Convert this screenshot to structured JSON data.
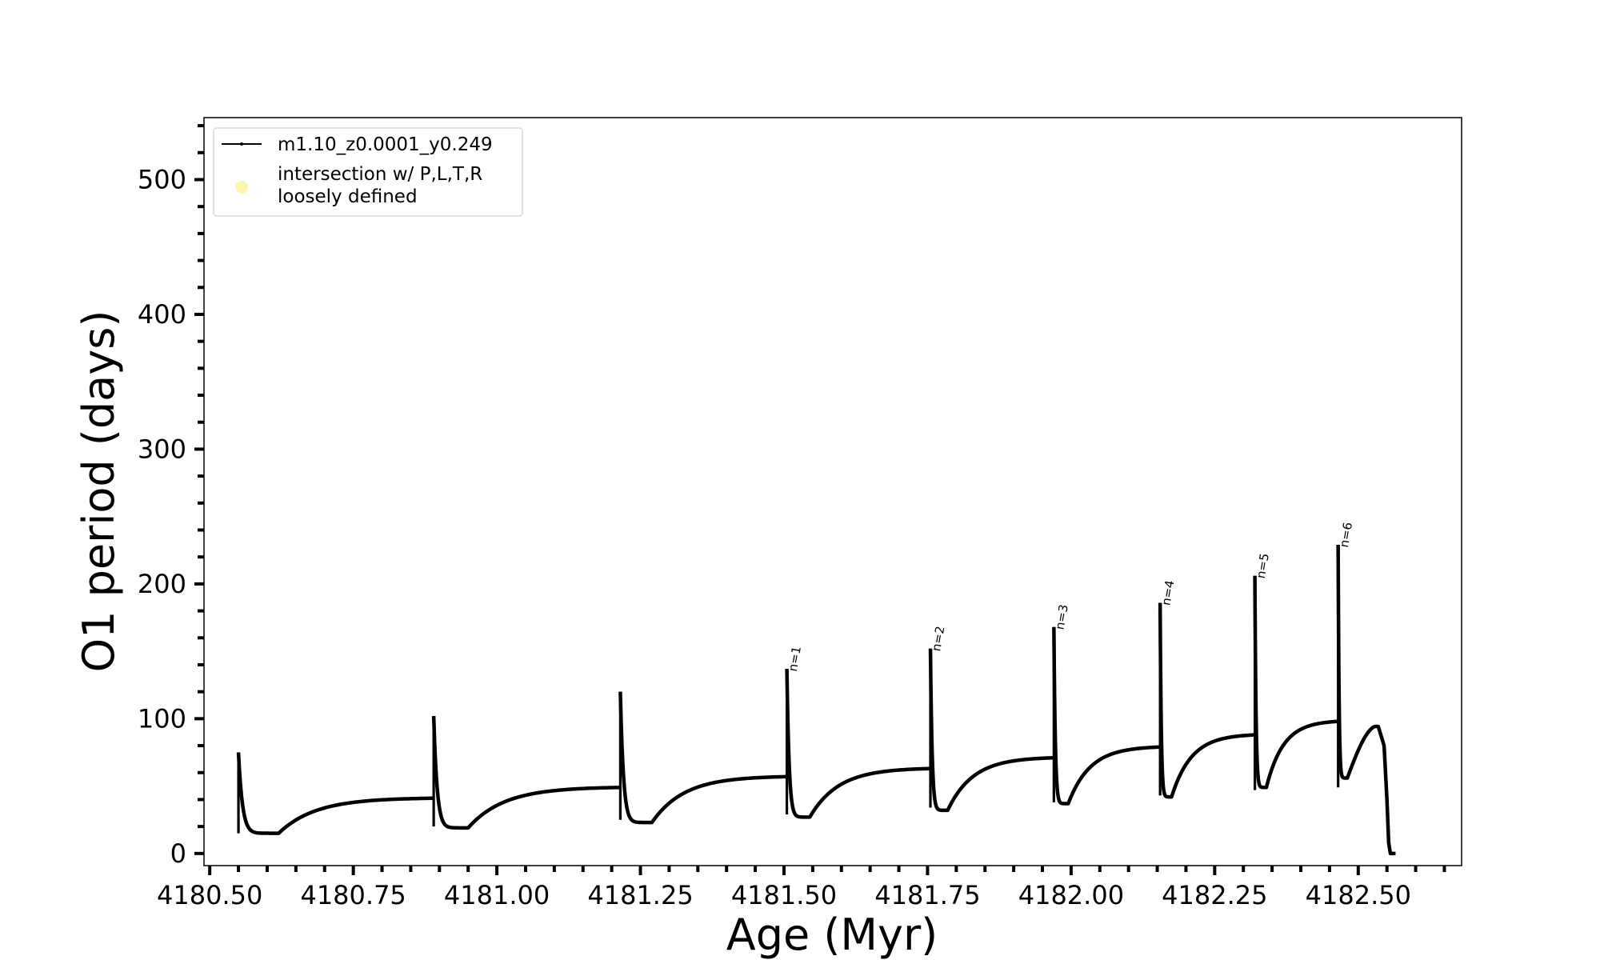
{
  "chart_data": {
    "type": "line",
    "title": "",
    "xlabel": "Age (Myr)",
    "ylabel": "O1 period (days)",
    "xlim": [
      4180.49,
      4182.68
    ],
    "ylim": [
      -9,
      546
    ],
    "x_ticks": [
      4180.5,
      4180.75,
      4181.0,
      4181.25,
      4181.5,
      4181.75,
      4182.0,
      4182.25,
      4182.5
    ],
    "x_tick_labels": [
      "4180.50",
      "4180.75",
      "4181.00",
      "4181.25",
      "4181.50",
      "4181.75",
      "4182.00",
      "4182.25",
      "4182.50"
    ],
    "y_ticks": [
      0,
      100,
      200,
      300,
      400,
      500
    ],
    "y_tick_labels": [
      "0",
      "100",
      "200",
      "300",
      "400",
      "500"
    ],
    "grid": false,
    "legend_position": "top-left",
    "legend": [
      {
        "label": "m1.10_z0.0001_y0.249",
        "marker": "line-dot",
        "color": "#000000"
      },
      {
        "label": "intersection w/ P,L,T,R\nloosely defined",
        "marker": "circle",
        "color": "#fff7b0"
      }
    ],
    "series": [
      {
        "name": "m1.10_z0.0001_y0.249",
        "color": "#000000",
        "pulses": [
          {
            "x0": 4180.55,
            "peak": 75,
            "low": 15,
            "min_x": 4180.62,
            "min_y": 15,
            "x1": 4180.89,
            "end": 41
          },
          {
            "x0": 4180.89,
            "peak": 102,
            "low": 20,
            "min_x": 4180.95,
            "min_y": 19,
            "x1": 4181.215,
            "end": 49
          },
          {
            "x0": 4181.215,
            "peak": 120,
            "low": 25,
            "min_x": 4181.27,
            "min_y": 23,
            "x1": 4181.505,
            "end": 57
          },
          {
            "x0": 4181.505,
            "peak": 137,
            "low": 29,
            "min_x": 4181.545,
            "min_y": 27,
            "x1": 4181.755,
            "end": 63
          },
          {
            "x0": 4181.755,
            "peak": 152,
            "low": 34,
            "min_x": 4181.785,
            "min_y": 32,
            "x1": 4181.97,
            "end": 71
          },
          {
            "x0": 4181.97,
            "peak": 168,
            "low": 38,
            "min_x": 4181.995,
            "min_y": 37,
            "x1": 4182.155,
            "end": 79
          },
          {
            "x0": 4182.155,
            "peak": 186,
            "low": 43,
            "min_x": 4182.175,
            "min_y": 42,
            "x1": 4182.32,
            "end": 88
          },
          {
            "x0": 4182.32,
            "peak": 206,
            "low": 47,
            "min_x": 4182.34,
            "min_y": 49,
            "x1": 4182.465,
            "end": 98
          },
          {
            "x0": 4182.465,
            "peak": 229,
            "low": 49,
            "min_x": 4182.481,
            "min_y": 56,
            "x1": 4182.555,
            "end": 0
          }
        ]
      }
    ],
    "annotations": [
      {
        "text": "n=1",
        "x": 4181.505,
        "y": 137
      },
      {
        "text": "n=2",
        "x": 4181.755,
        "y": 152
      },
      {
        "text": "n=3",
        "x": 4181.97,
        "y": 168
      },
      {
        "text": "n=4",
        "x": 4182.155,
        "y": 186
      },
      {
        "text": "n=5",
        "x": 4182.32,
        "y": 206
      },
      {
        "text": "n=6",
        "x": 4182.465,
        "y": 229
      }
    ]
  }
}
